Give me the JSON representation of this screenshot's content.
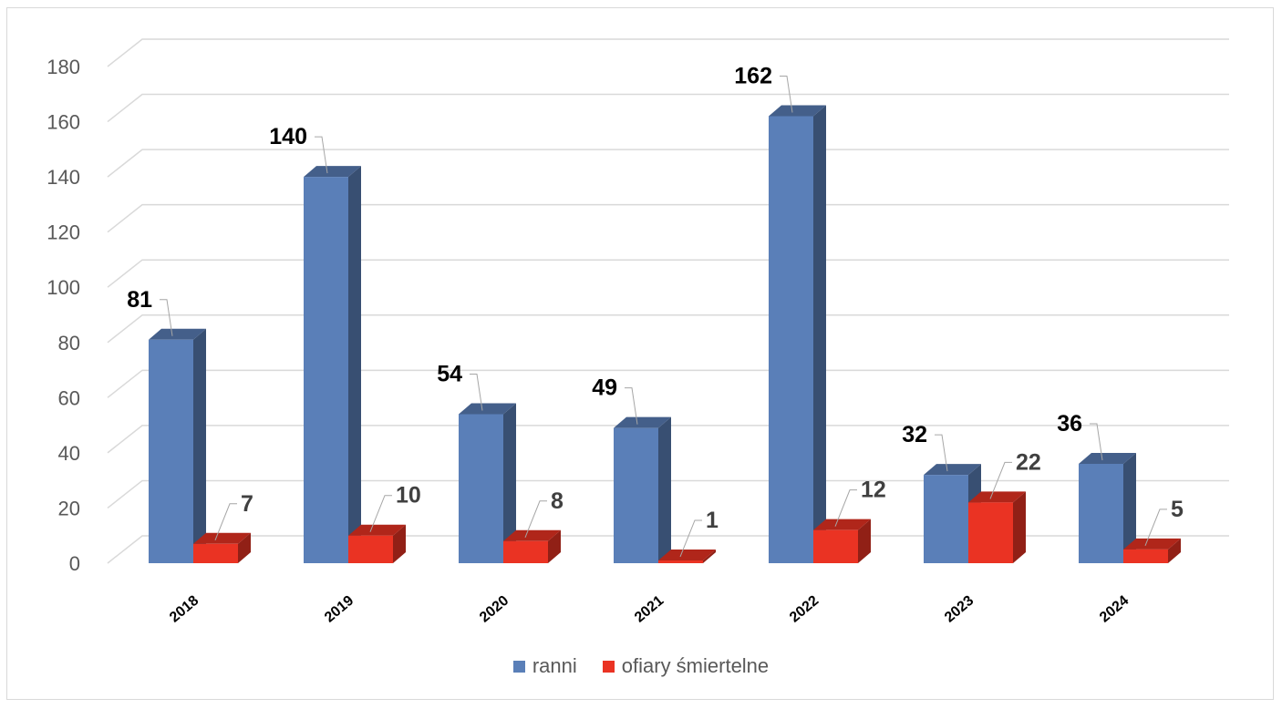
{
  "chart_data": {
    "type": "bar",
    "categories": [
      "2018",
      "2019",
      "2020",
      "2021",
      "2022",
      "2023",
      "2024"
    ],
    "series": [
      {
        "name": "ranni",
        "values": [
          81,
          140,
          54,
          49,
          162,
          32,
          36
        ],
        "color": "#5a7fb8"
      },
      {
        "name": "ofiary śmiertelne",
        "values": [
          7,
          10,
          8,
          1,
          12,
          22,
          5
        ],
        "color": "#ea3323"
      }
    ],
    "ylim": [
      0,
      180
    ],
    "yticks": [
      "0",
      "20",
      "40",
      "60",
      "80",
      "100",
      "120",
      "140",
      "160",
      "180"
    ],
    "grid": true,
    "legend_position": "bottom"
  }
}
